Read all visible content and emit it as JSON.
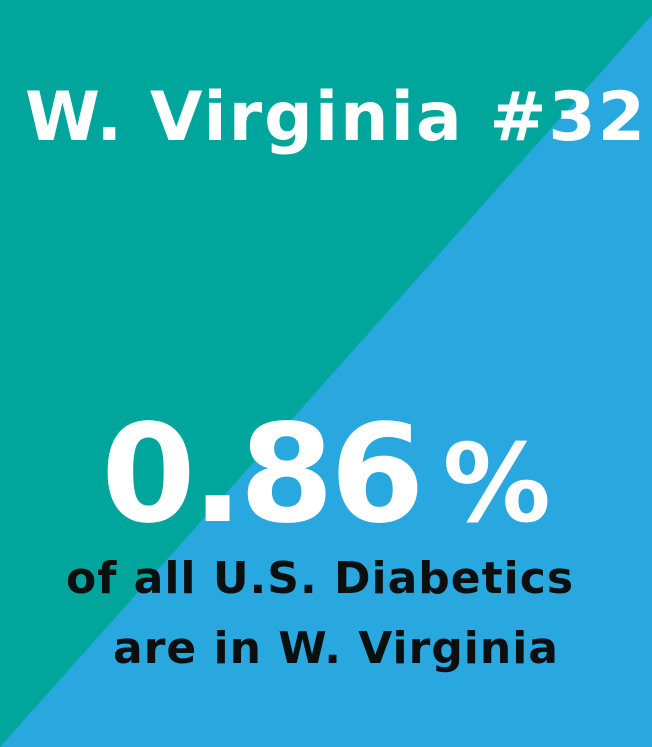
{
  "colors": {
    "teal": "#00a69c",
    "blue": "#29a8e0",
    "headline_text": "#ffffff",
    "caption_text": "#0b0f10"
  },
  "heading": {
    "title": "W. Virginia #32"
  },
  "stat": {
    "value": "0.86",
    "unit": "%"
  },
  "caption": {
    "line1": "of all U.S. Diabetics",
    "line2": "are in W. Virginia"
  }
}
